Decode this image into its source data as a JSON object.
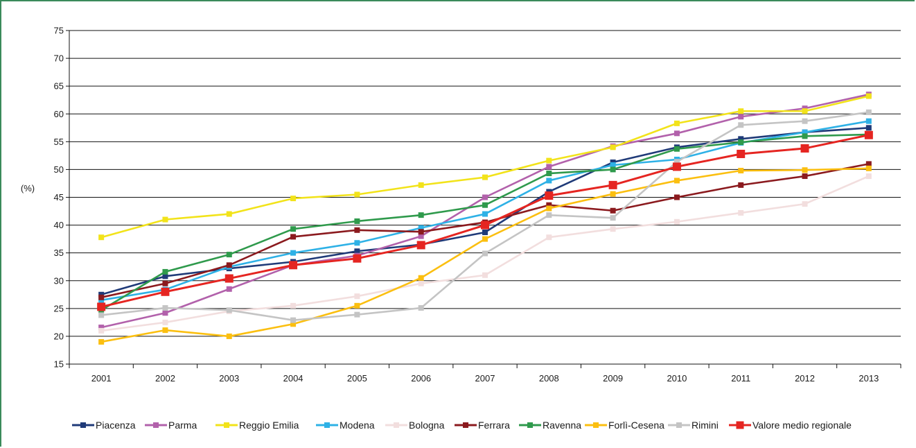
{
  "chart_data": {
    "type": "line",
    "ylabel": "(%)",
    "ylim": [
      15,
      75
    ],
    "yticks": [
      "15",
      "20",
      "25",
      "30",
      "35",
      "40",
      "45",
      "50",
      "55",
      "60",
      "65",
      "70",
      "75"
    ],
    "categories": [
      "2001",
      "2002",
      "2003",
      "2004",
      "2005",
      "2006",
      "2007",
      "2008",
      "2009",
      "2010",
      "2011",
      "2012",
      "2013"
    ],
    "grid": true,
    "legend_position": "bottom",
    "series": [
      {
        "name": "Piacenza",
        "color": "#1f3a78",
        "values": [
          27.5,
          30.8,
          32.2,
          33.4,
          35.3,
          36.5,
          38.7,
          46.0,
          51.3,
          54.0,
          55.5,
          56.7,
          57.5
        ]
      },
      {
        "name": "Parma",
        "color": "#b261ab",
        "values": [
          21.6,
          24.2,
          28.5,
          32.8,
          34.5,
          38.0,
          45.0,
          50.5,
          54.2,
          56.5,
          59.5,
          61.0,
          63.5
        ]
      },
      {
        "name": "Reggio Emilia",
        "color": "#f2e31a",
        "values": [
          37.8,
          41.0,
          42.0,
          44.8,
          45.5,
          47.2,
          48.6,
          51.6,
          54.0,
          58.3,
          60.5,
          60.5,
          63.2
        ]
      },
      {
        "name": "Modena",
        "color": "#2eb1e6",
        "values": [
          26.5,
          28.4,
          32.5,
          35.0,
          36.8,
          39.5,
          42.0,
          48.0,
          50.8,
          51.8,
          54.8,
          56.7,
          58.7
        ]
      },
      {
        "name": "Bologna",
        "color": "#f2dede",
        "values": [
          21.0,
          22.5,
          24.5,
          25.5,
          27.2,
          29.5,
          31.0,
          37.8,
          39.3,
          40.6,
          42.2,
          43.8,
          48.8
        ]
      },
      {
        "name": "Ferrara",
        "color": "#8b1a1e",
        "values": [
          27.0,
          29.5,
          32.8,
          37.9,
          39.1,
          38.8,
          40.5,
          43.6,
          42.6,
          45.0,
          47.2,
          48.8,
          51.0
        ]
      },
      {
        "name": "Ravenna",
        "color": "#2f9a4c",
        "values": [
          24.7,
          31.6,
          34.7,
          39.3,
          40.7,
          41.8,
          43.6,
          49.3,
          50.0,
          53.7,
          54.9,
          56.0,
          56.3
        ]
      },
      {
        "name": "Forlì-Cesena",
        "color": "#fbbf10",
        "values": [
          19.0,
          21.1,
          20.0,
          22.2,
          25.5,
          30.5,
          37.5,
          43.0,
          45.6,
          48.0,
          49.8,
          49.9,
          50.2
        ]
      },
      {
        "name": "Rimini",
        "color": "#c4c4c4",
        "values": [
          23.8,
          25.1,
          24.7,
          22.9,
          23.9,
          25.1,
          34.9,
          41.8,
          41.3,
          51.4,
          58.0,
          58.7,
          60.3
        ]
      },
      {
        "name": "Valore medio regionale",
        "color": "#e52521",
        "values": [
          25.3,
          28.0,
          30.4,
          32.8,
          34.0,
          36.4,
          40.0,
          45.3,
          47.2,
          50.5,
          52.8,
          53.8,
          56.2
        ]
      }
    ]
  }
}
